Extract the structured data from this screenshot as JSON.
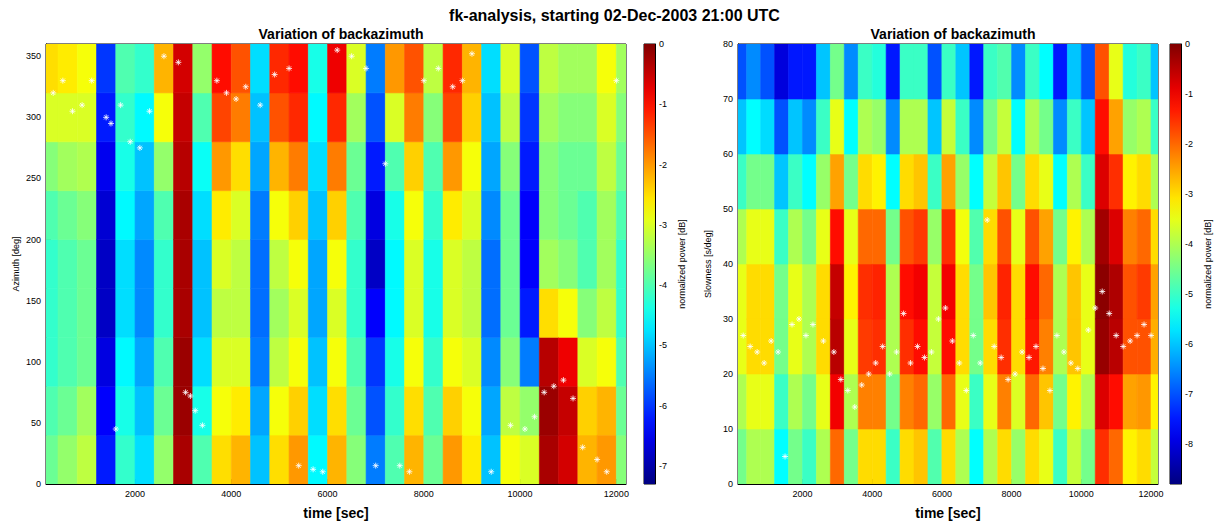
{
  "title": "fk-analysis, starting 02-Dec-2003 21:00 UTC",
  "chart_data": [
    {
      "type": "heatmap",
      "title": "Variation of backazimuth",
      "xlabel": "time [sec]",
      "ylabel": "Azimuth [deg]",
      "xlim": [
        150,
        12200
      ],
      "xticks": [
        2000,
        4000,
        6000,
        8000,
        10000,
        12000
      ],
      "ylim": [
        0,
        360
      ],
      "yticks": [
        0,
        50,
        100,
        150,
        200,
        250,
        300,
        350
      ],
      "cells": {
        "x_edges": [
          0,
          400,
          800,
          1200,
          1600,
          2000,
          2400,
          2800,
          3200,
          3600,
          4000,
          4400,
          4800,
          5200,
          5600,
          6000,
          6400,
          6800,
          7200,
          7600,
          8000,
          8400,
          8800,
          9200,
          9600,
          10000,
          10400,
          10800,
          11200,
          11600,
          12000,
          12400
        ],
        "y_edges": [
          0,
          40,
          80,
          120,
          160,
          200,
          240,
          280,
          320,
          360
        ],
        "power": [
          [
            -3.8,
            -4,
            -4.2,
            -4.2,
            -4.2,
            -4,
            -3.6,
            -3,
            -2.5
          ],
          [
            -3.5,
            -3.8,
            -4,
            -4,
            -4,
            -3.8,
            -3.4,
            -3,
            -2.6
          ],
          [
            -3.2,
            -3.4,
            -3.8,
            -3.8,
            -3.8,
            -3.6,
            -3.3,
            -3,
            -2.8
          ],
          [
            -6.2,
            -6.4,
            -6.6,
            -6.8,
            -6.8,
            -6.7,
            -6.5,
            -6.2,
            -6
          ],
          [
            -4.2,
            -4.4,
            -4.6,
            -4.8,
            -4.8,
            -4.6,
            -4.4,
            -4.2,
            -4
          ],
          [
            -4.8,
            -5,
            -5.2,
            -5.4,
            -5.4,
            -5.2,
            -5,
            -4.6,
            -4.2
          ],
          [
            -3.5,
            -3.8,
            -4,
            -4.2,
            -4.2,
            -4,
            -3.5,
            -2.8,
            -2.2
          ],
          [
            -0.3,
            -0.2,
            -0.2,
            -0.3,
            -0.3,
            -0.3,
            -0.4,
            -0.5,
            -0.6
          ],
          [
            -4,
            -4.4,
            -4.8,
            -5,
            -5,
            -4.8,
            -4.5,
            -4,
            -3.5
          ],
          [
            -2.5,
            -2.8,
            -3,
            -3.2,
            -3,
            -2.6,
            -2,
            -1.4,
            -1
          ],
          [
            -2.2,
            -2.6,
            -3,
            -3.2,
            -3.2,
            -3,
            -2.5,
            -1.8,
            -1.5
          ],
          [
            -5,
            -5.2,
            -5.5,
            -5.6,
            -5.6,
            -5.5,
            -5.2,
            -5,
            -4.8
          ],
          [
            -2.5,
            -2.8,
            -3.2,
            -3.4,
            -3.2,
            -2.8,
            -2.2,
            -1.5,
            -1.2
          ],
          [
            -2,
            -2.4,
            -2.8,
            -3,
            -2.8,
            -2.4,
            -1.8,
            -1.2,
            -1
          ],
          [
            -4.6,
            -4.8,
            -5,
            -5.2,
            -5.2,
            -5,
            -4.8,
            -4.6,
            -4.4
          ],
          [
            -2.2,
            -2.5,
            -2.8,
            -3,
            -2.8,
            -2.4,
            -1.8,
            -1.2,
            -0.8
          ],
          [
            -3.6,
            -3.8,
            -4,
            -4.2,
            -4.2,
            -4,
            -3.8,
            -3.4,
            -3
          ],
          [
            -5.5,
            -5.8,
            -6,
            -6.4,
            -6.8,
            -6.6,
            -6.2,
            -5.8,
            -5.5
          ],
          [
            -4,
            -4.2,
            -4.4,
            -4.6,
            -4.6,
            -4.4,
            -4,
            -3,
            -2
          ],
          [
            -2.2,
            -2.5,
            -2.8,
            -3,
            -3,
            -2.8,
            -2.4,
            -1.8,
            -1.5
          ],
          [
            -3.8,
            -4,
            -4.2,
            -4.4,
            -4.4,
            -4.2,
            -4,
            -3.6,
            -3.2
          ],
          [
            -2,
            -2.4,
            -2.8,
            -3,
            -3,
            -2.6,
            -2,
            -1.4,
            -1.2
          ],
          [
            -2.6,
            -2.8,
            -3,
            -3.2,
            -3.2,
            -3,
            -2.8,
            -2.4,
            -2.2
          ],
          [
            -5,
            -5.2,
            -5.4,
            -5.6,
            -5.6,
            -5.4,
            -5.2,
            -5,
            -4.8
          ],
          [
            -2.8,
            -3.2,
            -3.6,
            -3.8,
            -3.8,
            -3.8,
            -3.6,
            -3.2,
            -3
          ],
          [
            -3,
            -3.5,
            -5.5,
            -6.2,
            -6.4,
            -6.4,
            -6.2,
            -6,
            -5.8
          ],
          [
            -0.3,
            -0.2,
            -0.4,
            -2.5,
            -3.4,
            -3.6,
            -3.6,
            -3.4,
            -3.2
          ],
          [
            -0.6,
            -0.5,
            -0.8,
            -2.8,
            -3.6,
            -3.8,
            -3.8,
            -3.6,
            -3.4
          ],
          [
            -2.2,
            -2.4,
            -3,
            -3.6,
            -4,
            -4,
            -3.8,
            -3.6,
            -3.4
          ],
          [
            -2,
            -2.2,
            -2.8,
            -3.2,
            -3.4,
            -3.4,
            -3.2,
            -3,
            -2.8
          ],
          [
            -3.6,
            -3.8,
            -4,
            -4.2,
            -4.2,
            -4,
            -3.8,
            -3.6,
            -3.4
          ]
        ]
      },
      "colorbar": {
        "label": "normalized power [dB]",
        "range": [
          -7.3,
          0
        ],
        "ticks": [
          0,
          -1,
          -2,
          -3,
          -4,
          -5,
          -6,
          -7
        ]
      },
      "series": [
        {
          "type": "scatter",
          "marker": "asterisk",
          "color": "#ffffff",
          "x": [
            300,
            500,
            700,
            900,
            1100,
            1400,
            1500,
            1600,
            1700,
            1900,
            2100,
            2300,
            2600,
            2900,
            3050,
            3150,
            3250,
            3400,
            3700,
            3900,
            4100,
            4300,
            4600,
            4900,
            5200,
            5400,
            5700,
            5900,
            6200,
            6500,
            6800,
            7000,
            7200,
            7500,
            7700,
            8000,
            8300,
            8600,
            8800,
            9000,
            9400,
            9800,
            10100,
            10300,
            10500,
            10700,
            10900,
            11100,
            11300,
            11600,
            11800,
            12000
          ],
          "y": [
            320,
            330,
            305,
            310,
            330,
            300,
            295,
            45,
            310,
            280,
            275,
            305,
            350,
            345,
            75,
            72,
            60,
            48,
            330,
            320,
            315,
            325,
            310,
            335,
            340,
            15,
            12,
            10,
            355,
            350,
            340,
            15,
            262,
            15,
            10,
            330,
            340,
            325,
            330,
            352,
            10,
            48,
            45,
            55,
            75,
            80,
            85,
            70,
            30,
            20,
            10,
            330
          ]
        }
      ]
    },
    {
      "type": "heatmap",
      "title": "Variation of backazimuth",
      "xlabel": "time [sec]",
      "ylabel": "Slowness [s/deg]",
      "xlim": [
        150,
        12200
      ],
      "xticks": [
        2000,
        4000,
        6000,
        8000,
        10000,
        12000
      ],
      "ylim": [
        0,
        80
      ],
      "yticks": [
        0,
        10,
        20,
        30,
        40,
        50,
        60,
        70,
        80
      ],
      "cells": {
        "x_edges": [
          0,
          400,
          800,
          1200,
          1600,
          2000,
          2400,
          2800,
          3200,
          3600,
          4000,
          4400,
          4800,
          5200,
          5600,
          6000,
          6400,
          6800,
          7200,
          7600,
          8000,
          8400,
          8800,
          9200,
          9600,
          10000,
          10400,
          10800,
          11200,
          11600,
          12000,
          12400
        ],
        "y_edges": [
          0,
          10,
          20,
          30,
          40,
          50,
          60,
          70,
          80
        ],
        "power": [
          [
            -4.5,
            -4,
            -3.5,
            -3.5,
            -4,
            -5,
            -6,
            -7
          ],
          [
            -4,
            -3.5,
            -3,
            -3,
            -3.5,
            -4.5,
            -5.5,
            -6.5
          ],
          [
            -4,
            -3.5,
            -3,
            -3,
            -3.5,
            -4.5,
            -5.8,
            -7
          ],
          [
            -5.5,
            -5,
            -4.5,
            -4.5,
            -5,
            -6,
            -7,
            -8
          ],
          [
            -4.5,
            -4,
            -3.5,
            -3.5,
            -4,
            -5,
            -6,
            -7.5
          ],
          [
            -5,
            -4.5,
            -4,
            -4,
            -4.5,
            -5.5,
            -6.5,
            -7.5
          ],
          [
            -4,
            -3.5,
            -3,
            -3,
            -3.5,
            -4.2,
            -5,
            -6
          ],
          [
            -2,
            -1,
            -0.5,
            -0.6,
            -1.2,
            -2.5,
            -3.5,
            -4.5
          ],
          [
            -4.5,
            -4,
            -3.5,
            -3.2,
            -3.5,
            -4.5,
            -5.5,
            -6.5
          ],
          [
            -3,
            -2.2,
            -1.6,
            -1.5,
            -2,
            -3,
            -4,
            -5
          ],
          [
            -3,
            -2.2,
            -1.5,
            -1.4,
            -2,
            -3.2,
            -4.2,
            -5.2
          ],
          [
            -5,
            -4.5,
            -4,
            -4,
            -4.5,
            -5.5,
            -6.5,
            -7.5
          ],
          [
            -3,
            -2.2,
            -1.5,
            -1.2,
            -1.8,
            -3,
            -4,
            -5
          ],
          [
            -2.8,
            -2,
            -1.2,
            -1,
            -1.6,
            -2.8,
            -4,
            -5
          ],
          [
            -4.8,
            -4.2,
            -3.8,
            -3.8,
            -4.2,
            -5,
            -6,
            -7
          ],
          [
            -3,
            -2,
            -1.2,
            -1,
            -1.5,
            -2.5,
            -3.8,
            -5
          ],
          [
            -4,
            -3.5,
            -3,
            -3,
            -3.4,
            -4.2,
            -5,
            -6
          ],
          [
            -5.5,
            -5,
            -4.5,
            -4.5,
            -4.8,
            -5.5,
            -6.5,
            -7.5
          ],
          [
            -4,
            -3.5,
            -3,
            -2.8,
            -3,
            -3.8,
            -4.5,
            -5
          ],
          [
            -3,
            -2.2,
            -1.5,
            -1.4,
            -1.8,
            -2.8,
            -3.8,
            -4.8
          ],
          [
            -4.2,
            -3.6,
            -3,
            -3,
            -3.5,
            -4.5,
            -5.5,
            -6.5
          ],
          [
            -3,
            -2,
            -1.3,
            -1.2,
            -1.8,
            -3,
            -4,
            -5
          ],
          [
            -3.5,
            -2.8,
            -2.2,
            -2,
            -2.5,
            -3.5,
            -4.5,
            -5.5
          ],
          [
            -5,
            -4.5,
            -4,
            -4,
            -4.5,
            -5.5,
            -6.5,
            -7.5
          ],
          [
            -3.8,
            -3.2,
            -2.8,
            -2.8,
            -3.2,
            -4,
            -5,
            -6
          ],
          [
            -4.5,
            -4,
            -3.5,
            -3.5,
            -4,
            -5,
            -6,
            -7
          ],
          [
            -1.5,
            -0.8,
            -0.2,
            -0.1,
            -0.3,
            -0.8,
            -1.2,
            -1.8
          ],
          [
            -2,
            -1.2,
            -0.5,
            -0.4,
            -0.8,
            -1.5,
            -2.5,
            -3.5
          ],
          [
            -3.2,
            -2.5,
            -1.8,
            -1.8,
            -2.2,
            -3.2,
            -4.2,
            -5.2
          ],
          [
            -3,
            -2.4,
            -1.8,
            -1.6,
            -2,
            -3,
            -4,
            -5
          ],
          [
            -3.8,
            -3.2,
            -2.6,
            -2.5,
            -3,
            -4,
            -5,
            -6
          ]
        ]
      },
      "colorbar": {
        "label": "normalized power [dB]",
        "range": [
          -8.8,
          0
        ],
        "ticks": [
          0,
          -1,
          -2,
          -3,
          -4,
          -5,
          -6,
          -7,
          -8
        ]
      },
      "series": [
        {
          "type": "scatter",
          "marker": "asterisk",
          "color": "#ffffff",
          "x": [
            300,
            500,
            700,
            900,
            1100,
            1300,
            1500,
            1700,
            1900,
            2100,
            2300,
            2600,
            2900,
            3100,
            3300,
            3500,
            3700,
            3900,
            4100,
            4300,
            4500,
            4700,
            4900,
            5100,
            5300,
            5500,
            5700,
            5900,
            6100,
            6300,
            6500,
            6700,
            6900,
            7100,
            7300,
            7500,
            7700,
            7900,
            8100,
            8300,
            8500,
            8700,
            8900,
            9100,
            9300,
            9500,
            9700,
            9900,
            10200,
            10400,
            10600,
            10800,
            11000,
            11200,
            11400,
            11600,
            11800,
            12000
          ],
          "y": [
            27,
            25,
            24,
            22,
            26,
            24,
            5,
            29,
            30,
            27,
            29,
            26,
            24,
            19,
            17,
            14,
            18,
            20,
            22,
            25,
            20,
            24,
            31,
            22,
            25,
            23,
            24,
            30,
            32,
            26,
            22,
            17,
            27,
            22,
            48,
            25,
            23,
            19,
            20,
            24,
            23,
            25,
            21,
            17,
            27,
            24,
            22,
            21,
            28,
            32,
            35,
            31,
            27,
            25,
            26,
            27,
            29,
            27
          ]
        }
      ]
    }
  ]
}
